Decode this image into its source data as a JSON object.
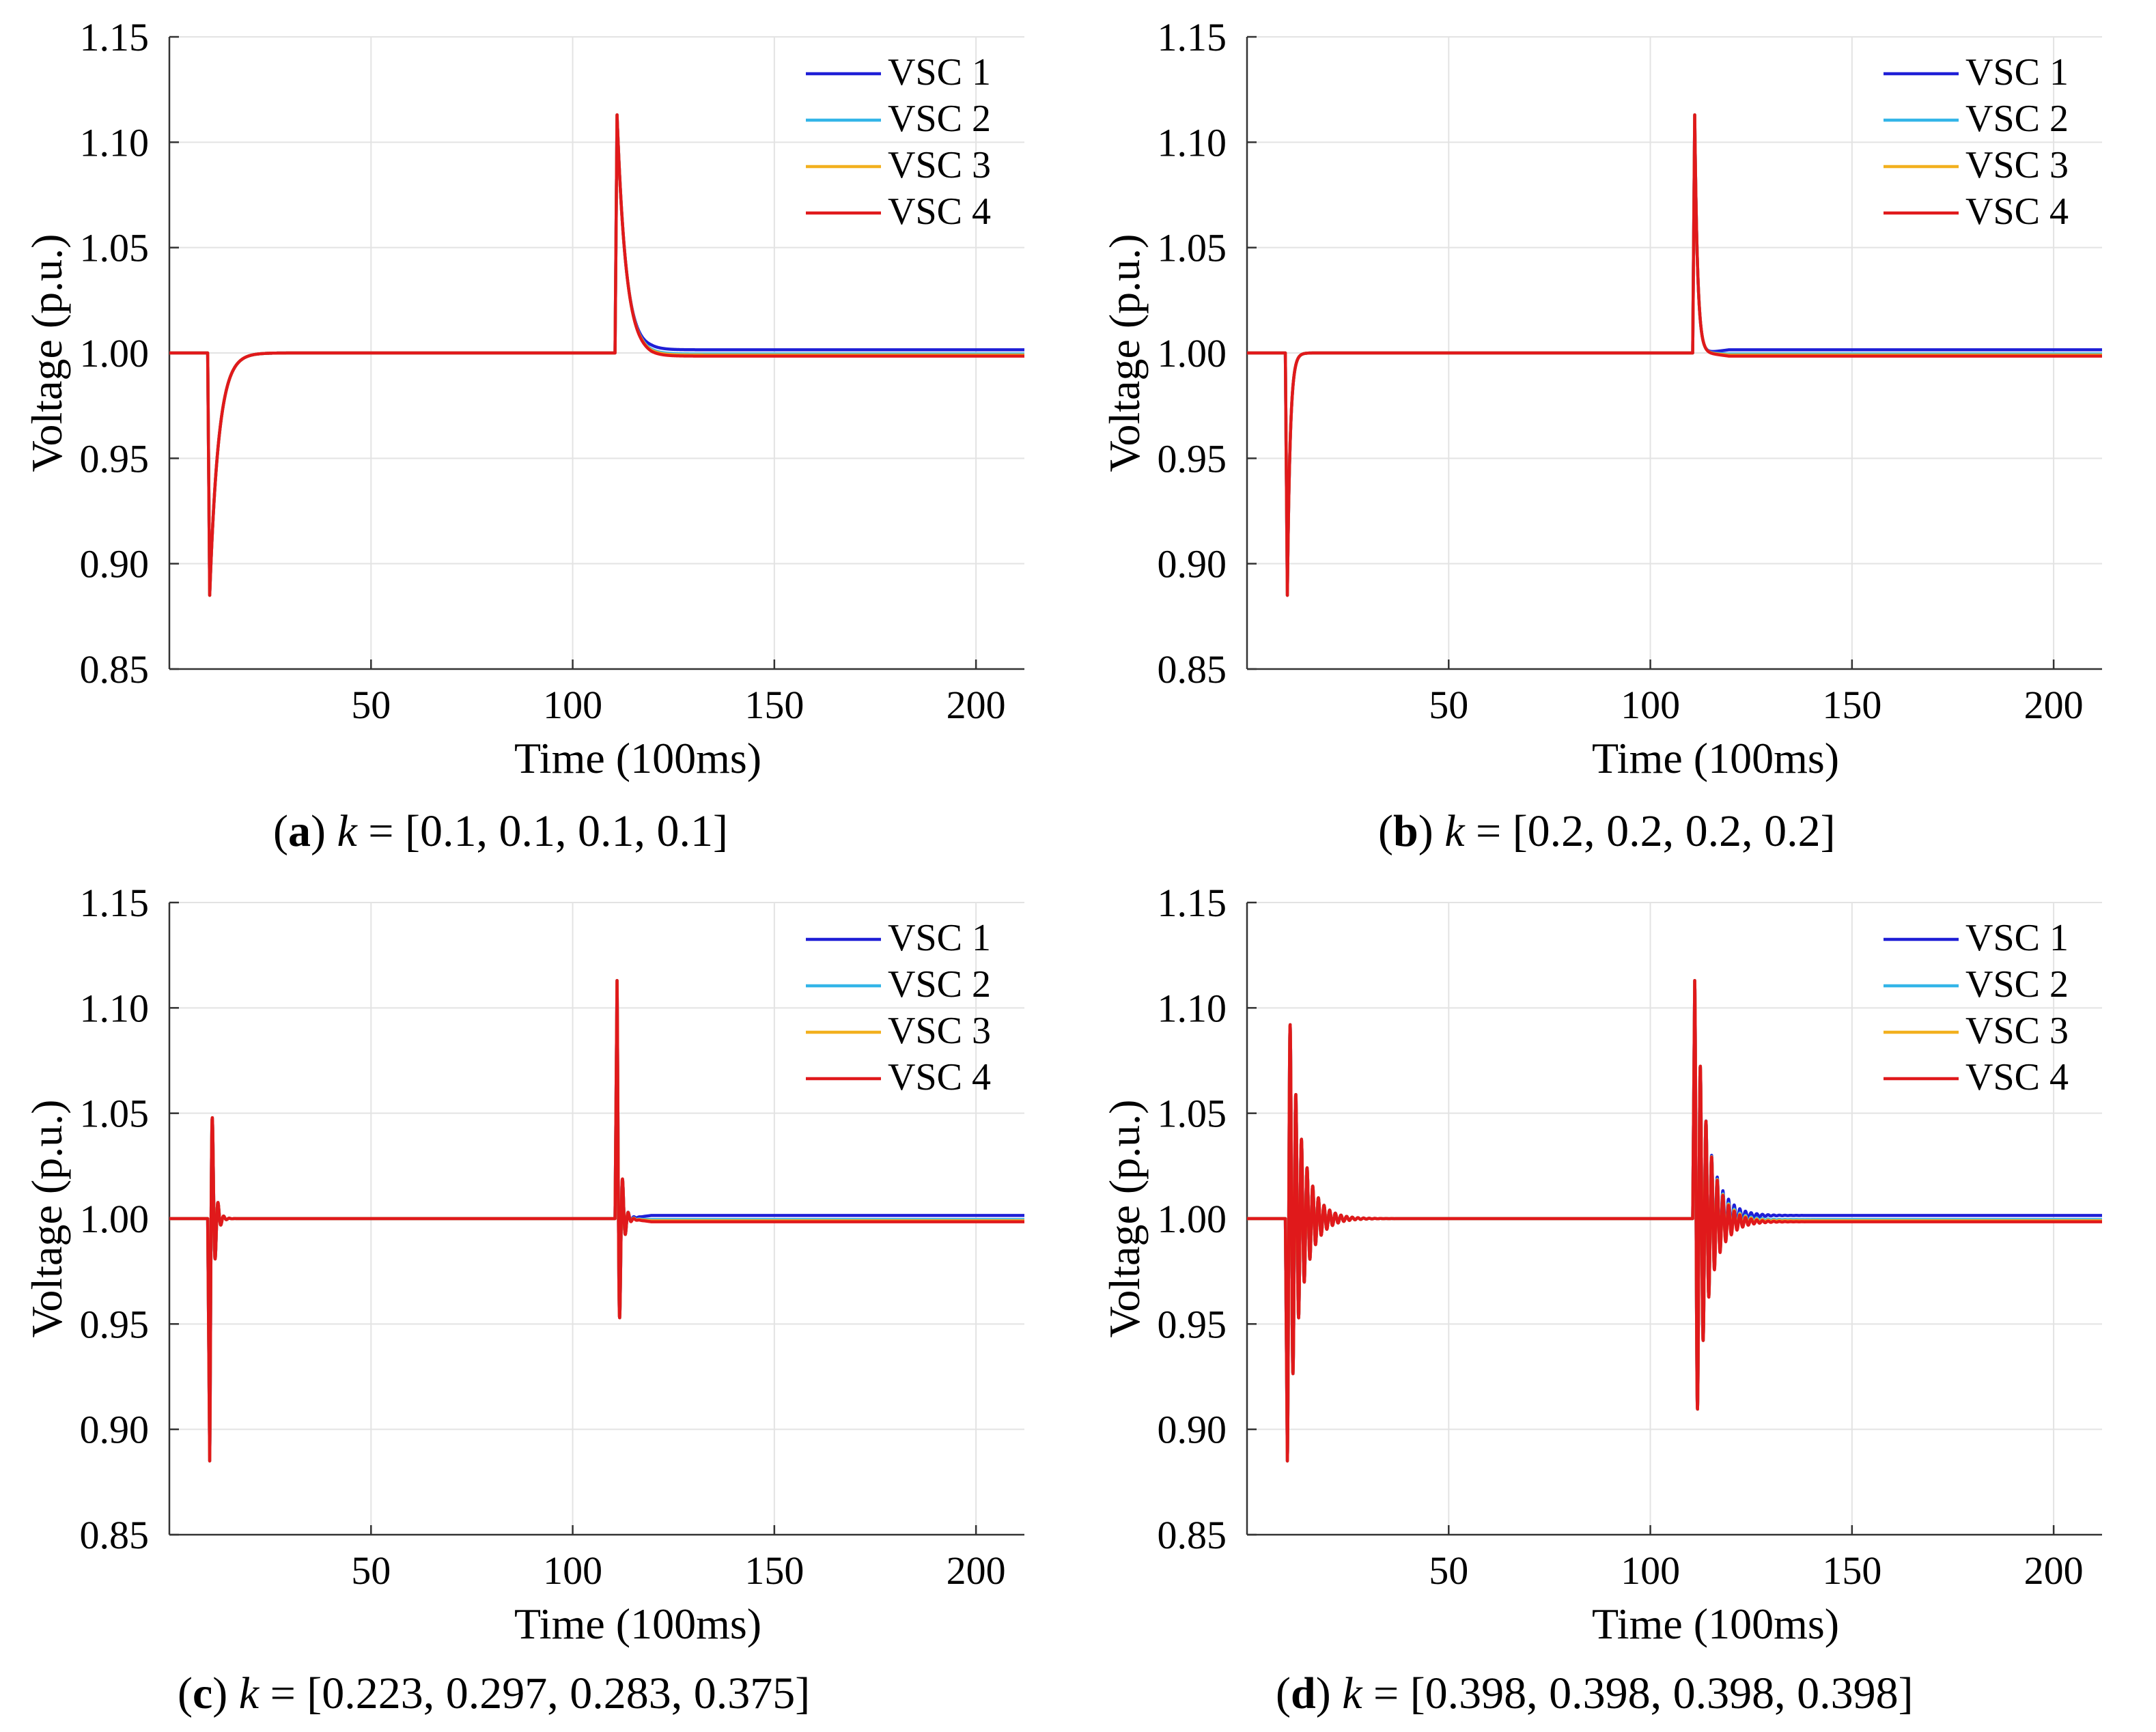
{
  "chart_data": [
    {
      "type": "line",
      "panel_letter": "a",
      "caption_eq": " = [0.1, 0.1, 0.1, 0.1]",
      "k_symbol": "k",
      "xlabel": "Time (100ms)",
      "ylabel": "Voltage (p.u.)",
      "xlim": [
        0,
        212
      ],
      "ylim": [
        0.85,
        1.15
      ],
      "xticks": [
        50,
        100,
        150,
        200
      ],
      "yticks": [
        0.85,
        0.9,
        0.95,
        1.0,
        1.05,
        1.1,
        1.15
      ],
      "ytick_labels": [
        "0.85",
        "0.90",
        "0.95",
        "1.00",
        "1.05",
        "1.10",
        "1.15"
      ],
      "grid": true,
      "legend_position": "top-right",
      "fault1": {
        "t": 9.5,
        "dip": 0.885,
        "type": "exp",
        "tau": 2.2
      },
      "fault2": {
        "t": 110.5,
        "peak": 1.113,
        "type": "exp",
        "tau": 2.2
      },
      "series": [
        {
          "name": "VSC 1",
          "color": "#1f1fd6",
          "final": 1.0015
        },
        {
          "name": "VSC 2",
          "color": "#33b5e8",
          "final": 0.9995
        },
        {
          "name": "VSC 3",
          "color": "#f2b01e",
          "final": 0.999
        },
        {
          "name": "VSC 4",
          "color": "#e0191b",
          "final": 0.9985
        }
      ]
    },
    {
      "type": "line",
      "panel_letter": "b",
      "caption_eq": " = [0.2, 0.2, 0.2, 0.2]",
      "k_symbol": "k",
      "xlabel": "Time (100ms)",
      "ylabel": "Voltage (p.u.)",
      "xlim": [
        0,
        212
      ],
      "ylim": [
        0.85,
        1.15
      ],
      "xticks": [
        50,
        100,
        150,
        200
      ],
      "yticks": [
        0.85,
        0.9,
        0.95,
        1.0,
        1.05,
        1.1,
        1.15
      ],
      "ytick_labels": [
        "0.85",
        "0.90",
        "0.95",
        "1.00",
        "1.05",
        "1.10",
        "1.15"
      ],
      "grid": true,
      "legend_position": "top-right",
      "fault1": {
        "t": 9.5,
        "dip": 0.885,
        "type": "exp",
        "tau": 0.7
      },
      "fault2": {
        "t": 110.5,
        "peak": 1.113,
        "type": "exp",
        "tau": 0.7
      },
      "series": [
        {
          "name": "VSC 1",
          "color": "#1f1fd6",
          "final": 1.0015
        },
        {
          "name": "VSC 2",
          "color": "#33b5e8",
          "final": 0.9995
        },
        {
          "name": "VSC 3",
          "color": "#f2b01e",
          "final": 0.999
        },
        {
          "name": "VSC 4",
          "color": "#e0191b",
          "final": 0.9985
        }
      ]
    },
    {
      "type": "line",
      "panel_letter": "c",
      "caption_eq": " = [0.223, 0.297, 0.283, 0.375]",
      "k_symbol": "k",
      "xlabel": "Time (100ms)",
      "ylabel": "Voltage (p.u.)",
      "xlim": [
        0,
        212
      ],
      "ylim": [
        0.85,
        1.15
      ],
      "xticks": [
        50,
        100,
        150,
        200
      ],
      "yticks": [
        0.85,
        0.9,
        0.95,
        1.0,
        1.05,
        1.1,
        1.15
      ],
      "ytick_labels": [
        "0.85",
        "0.90",
        "0.95",
        "1.00",
        "1.05",
        "1.10",
        "1.15"
      ],
      "grid": true,
      "legend_position": "top-right",
      "fault1": {
        "t": 9.5,
        "dip": 0.885,
        "type": "osc",
        "ratio": 0.4,
        "period": 1.4
      },
      "fault2": {
        "t": 110.5,
        "peak": 1.113,
        "type": "osc",
        "ratio": 0.4,
        "period": 1.4
      },
      "series": [
        {
          "name": "VSC 1",
          "color": "#1f1fd6",
          "final": 1.0015
        },
        {
          "name": "VSC 2",
          "color": "#33b5e8",
          "final": 0.9995
        },
        {
          "name": "VSC 3",
          "color": "#f2b01e",
          "final": 0.999
        },
        {
          "name": "VSC 4",
          "color": "#e0191b",
          "final": 0.9985
        }
      ]
    },
    {
      "type": "line",
      "panel_letter": "d",
      "caption_eq": " = [0.398, 0.398, 0.398, 0.398]",
      "k_symbol": "k",
      "xlabel": "Time (100ms)",
      "ylabel": "Voltage (p.u.)",
      "xlim": [
        0,
        212
      ],
      "ylim": [
        0.85,
        1.15
      ],
      "xticks": [
        50,
        100,
        150,
        200
      ],
      "yticks": [
        0.85,
        0.9,
        0.95,
        1.0,
        1.05,
        1.1,
        1.15
      ],
      "ytick_labels": [
        "0.85",
        "0.90",
        "0.95",
        "1.00",
        "1.05",
        "1.10",
        "1.15"
      ],
      "grid": true,
      "legend_position": "top-right",
      "fault1": {
        "t": 9.5,
        "dip": 0.885,
        "type": "osc",
        "ratio": 0.8,
        "period": 1.4
      },
      "fault2": {
        "t": 110.5,
        "peak": 1.113,
        "type": "osc",
        "ratio": 0.8,
        "period": 1.4
      },
      "series": [
        {
          "name": "VSC 1",
          "color": "#1f1fd6",
          "final": 1.0015
        },
        {
          "name": "VSC 2",
          "color": "#33b5e8",
          "final": 0.9995
        },
        {
          "name": "VSC 3",
          "color": "#f2b01e",
          "final": 0.999
        },
        {
          "name": "VSC 4",
          "color": "#e0191b",
          "final": 0.9985
        }
      ]
    }
  ]
}
